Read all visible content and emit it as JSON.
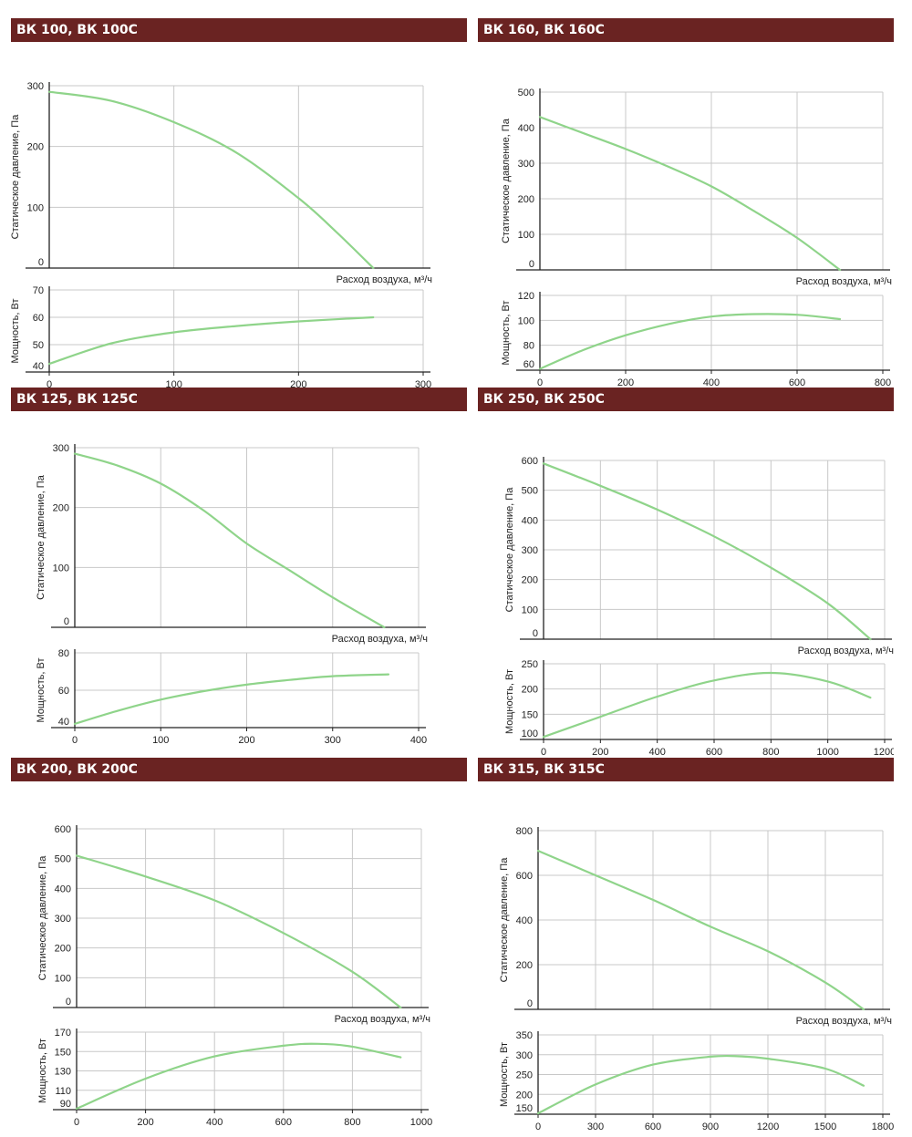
{
  "colors": {
    "header_bg": "#6a2322",
    "curve": "#8fd48a",
    "grid": "#c8c8c8",
    "axis": "#222222"
  },
  "chart_data": [
    {
      "type": "line",
      "title": "ВК 100, ВК 100С",
      "pressure": {
        "ylabel": "Статическое давление, Па",
        "xlabel": "Расход воздуха, м³/ч",
        "ylim": [
          0,
          300
        ],
        "yticks": [
          "0",
          "100",
          "200",
          "300"
        ],
        "xlim": [
          0,
          300
        ],
        "xgrid": [
          100,
          200,
          300
        ],
        "x": [
          0,
          50,
          100,
          150,
          200,
          230,
          260
        ],
        "y": [
          290,
          275,
          240,
          190,
          115,
          60,
          0
        ]
      },
      "power": {
        "ylabel": "Мощность, Вт",
        "ylim": [
          40,
          70
        ],
        "yticks": [
          "40",
          "50",
          "60",
          "70"
        ],
        "xlim": [
          0,
          300
        ],
        "xticks": [
          "0",
          "100",
          "200",
          "300"
        ],
        "x": [
          0,
          50,
          100,
          150,
          200,
          260
        ],
        "y": [
          43,
          50.5,
          54.5,
          56.8,
          58.5,
          60
        ]
      }
    },
    {
      "type": "line",
      "title": "ВК 160, ВК 160С",
      "pressure": {
        "ylabel": "Статическое давление, Па",
        "xlabel": "Расход воздуха, м³/ч",
        "ylim": [
          0,
          500
        ],
        "yticks": [
          "0",
          "100",
          "200",
          "300",
          "400",
          "500"
        ],
        "xlim": [
          0,
          800
        ],
        "xgrid": [
          200,
          400,
          600,
          800
        ],
        "x": [
          0,
          100,
          200,
          300,
          400,
          500,
          600,
          700
        ],
        "y": [
          430,
          385,
          340,
          290,
          235,
          165,
          90,
          0
        ]
      },
      "power": {
        "ylabel": "Мощность, Вт",
        "ylim": [
          60,
          120
        ],
        "yticks": [
          "60",
          "80",
          "100",
          "120"
        ],
        "xlim": [
          0,
          800
        ],
        "xticks": [
          "0",
          "200",
          "400",
          "600",
          "800"
        ],
        "x": [
          0,
          100,
          200,
          300,
          400,
          500,
          600,
          700
        ],
        "y": [
          61,
          76,
          88,
          97,
          103,
          105,
          104.5,
          101
        ]
      }
    },
    {
      "type": "line",
      "title": "ВК 125, ВК 125С",
      "pressure": {
        "ylabel": "Статическое давление, Па",
        "xlabel": "Расход воздуха, м³/ч",
        "ylim": [
          0,
          300
        ],
        "yticks": [
          "0",
          "100",
          "200",
          "300"
        ],
        "xlim": [
          0,
          400
        ],
        "xgrid": [
          100,
          200,
          300,
          400
        ],
        "x": [
          0,
          50,
          100,
          150,
          200,
          250,
          300,
          360
        ],
        "y": [
          290,
          270,
          240,
          195,
          140,
          95,
          50,
          0
        ]
      },
      "power": {
        "ylabel": "Мощность, Вт",
        "ylim": [
          40,
          80
        ],
        "yticks": [
          "40",
          "60",
          "80"
        ],
        "xlim": [
          0,
          400
        ],
        "xticks": [
          "0",
          "100",
          "200",
          "300",
          "400"
        ],
        "x": [
          0,
          50,
          100,
          150,
          200,
          250,
          300,
          365
        ],
        "y": [
          42,
          49,
          55,
          59.5,
          63,
          65.5,
          67.5,
          68.5
        ]
      }
    },
    {
      "type": "line",
      "title": "ВК 250, ВК 250С",
      "pressure": {
        "ylabel": "Статическое давление, Па",
        "xlabel": "Расход воздуха, м³/ч",
        "ylim": [
          0,
          600
        ],
        "yticks": [
          "0",
          "100",
          "200",
          "300",
          "400",
          "500",
          "600"
        ],
        "xlim": [
          0,
          1200
        ],
        "xgrid": [
          200,
          400,
          600,
          800,
          1000,
          1200
        ],
        "x": [
          0,
          200,
          400,
          600,
          800,
          1000,
          1150
        ],
        "y": [
          590,
          515,
          435,
          345,
          240,
          120,
          0
        ]
      },
      "power": {
        "ylabel": "Мощность, Вт",
        "ylim": [
          100,
          250
        ],
        "yticks": [
          "100",
          "150",
          "200",
          "250"
        ],
        "xlim": [
          0,
          1200
        ],
        "xticks": [
          "0",
          "200",
          "400",
          "600",
          "800",
          "1000",
          "1200"
        ],
        "x": [
          0,
          200,
          400,
          600,
          800,
          1000,
          1150
        ],
        "y": [
          105,
          145,
          185,
          217,
          232,
          215,
          183
        ]
      }
    },
    {
      "type": "line",
      "title": "ВК 200, ВК 200С",
      "pressure": {
        "ylabel": "Статическое давление, Па",
        "xlabel": "Расход воздуха, м³/ч",
        "ylim": [
          0,
          600
        ],
        "yticks": [
          "0",
          "100",
          "200",
          "300",
          "400",
          "500",
          "600"
        ],
        "xlim": [
          0,
          1000
        ],
        "xgrid": [
          200,
          400,
          600,
          800,
          1000
        ],
        "x": [
          0,
          200,
          400,
          600,
          800,
          940
        ],
        "y": [
          510,
          440,
          360,
          250,
          120,
          0
        ]
      },
      "power": {
        "ylabel": "Мощность, Вт",
        "ylim": [
          90,
          170
        ],
        "yticks": [
          "90",
          "110",
          "130",
          "150",
          "170"
        ],
        "xlim": [
          0,
          1000
        ],
        "xticks": [
          "0",
          "200",
          "400",
          "600",
          "800",
          "1000"
        ],
        "x": [
          0,
          200,
          400,
          600,
          700,
          800,
          940
        ],
        "y": [
          91,
          122,
          145,
          156,
          158,
          155,
          144
        ]
      }
    },
    {
      "type": "line",
      "title": "ВК 315, ВК 315С",
      "pressure": {
        "ylabel": "Статическое давление, Па",
        "xlabel": "Расход воздуха, м³/ч",
        "ylim": [
          0,
          800
        ],
        "yticks": [
          "0",
          "200",
          "400",
          "600",
          "800"
        ],
        "xlim": [
          0,
          1800
        ],
        "xgrid": [
          300,
          600,
          900,
          1200,
          1500,
          1800
        ],
        "x": [
          0,
          300,
          600,
          900,
          1200,
          1500,
          1700
        ],
        "y": [
          710,
          600,
          490,
          370,
          260,
          120,
          0
        ]
      },
      "power": {
        "ylabel": "Мощность, Вт",
        "ylim": [
          150,
          350
        ],
        "yticks": [
          "150",
          "200",
          "250",
          "300",
          "350"
        ],
        "xlim": [
          0,
          1800
        ],
        "xticks": [
          "0",
          "300",
          "600",
          "900",
          "1200",
          "1500",
          "1800"
        ],
        "x": [
          0,
          300,
          600,
          900,
          1050,
          1200,
          1500,
          1700
        ],
        "y": [
          152,
          225,
          275,
          295,
          296,
          290,
          265,
          222
        ]
      }
    }
  ]
}
